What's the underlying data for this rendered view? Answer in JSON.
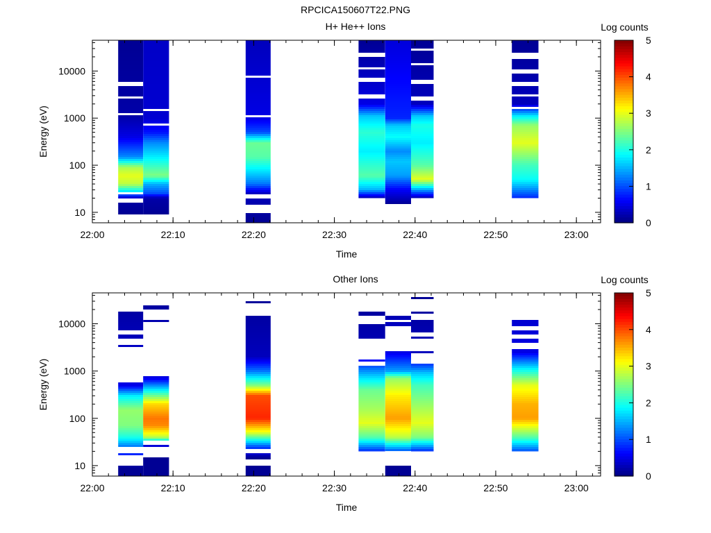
{
  "page_title": "RPCICA150607T22.PNG",
  "chart_data": [
    {
      "type": "heatmap",
      "title": "H+ He++ Ions",
      "xlabel": "Time",
      "ylabel": "Energy (eV)",
      "colorbar_label": "Log counts",
      "x_range": [
        "22:00",
        "23:03"
      ],
      "x_ticks": [
        "22:00",
        "22:10",
        "22:20",
        "22:30",
        "22:40",
        "22:50",
        "23:00"
      ],
      "y_scale": "log",
      "y_range": [
        6,
        45000
      ],
      "y_ticks": [
        10,
        100,
        1000,
        10000
      ],
      "y_tick_labels": [
        "10",
        "100",
        "1000",
        "10000"
      ],
      "colorbar_range": [
        0,
        5
      ],
      "colorbar_ticks": [
        "0",
        "1",
        "2",
        "3",
        "4",
        "5"
      ],
      "columns": [
        {
          "start": "22:03.2",
          "end": "22:06.3",
          "profile": [
            [
              9,
              0.1
            ],
            [
              15,
              0.15
            ],
            [
              20,
              0.3
            ],
            [
              28,
              1.8
            ],
            [
              40,
              2.8
            ],
            [
              60,
              3.0
            ],
            [
              90,
              2.7
            ],
            [
              150,
              1.3
            ],
            [
              400,
              0.5
            ],
            [
              1100,
              0.2
            ],
            [
              45000,
              0.1
            ]
          ],
          "gaps": [
            [
              16,
              19
            ],
            [
              24,
              26
            ],
            [
              1200,
              1300
            ],
            [
              2500,
              2800
            ],
            [
              5000,
              6000
            ]
          ]
        },
        {
          "start": "22:06.3",
          "end": "22:09.5",
          "profile": [
            [
              9,
              0.1
            ],
            [
              20,
              0.2
            ],
            [
              25,
              1.0
            ],
            [
              40,
              1.5
            ],
            [
              60,
              2.5
            ],
            [
              80,
              2.3
            ],
            [
              150,
              1.8
            ],
            [
              300,
              1.3
            ],
            [
              500,
              0.7
            ],
            [
              1000,
              0.4
            ],
            [
              45000,
              0.35
            ]
          ],
          "gaps": [
            [
              700,
              780
            ],
            [
              1400,
              1550
            ]
          ]
        },
        {
          "start": "22:19.0",
          "end": "22:22.1",
          "profile": [
            [
              6,
              0.1
            ],
            [
              9,
              0.15
            ],
            [
              25,
              0.3
            ],
            [
              40,
              1.2
            ],
            [
              80,
              1.8
            ],
            [
              150,
              2.3
            ],
            [
              300,
              2.4
            ],
            [
              500,
              1.0
            ],
            [
              1000,
              0.5
            ],
            [
              45000,
              0.3
            ]
          ],
          "gaps": [
            [
              10,
              15
            ],
            [
              19,
              25
            ],
            [
              1050,
              1150
            ],
            [
              7000,
              8000
            ]
          ]
        },
        {
          "start": "22:33.0",
          "end": "22:36.3",
          "profile": [
            [
              20,
              0.2
            ],
            [
              30,
              1.5
            ],
            [
              60,
              2.3
            ],
            [
              100,
              2.1
            ],
            [
              200,
              1.8
            ],
            [
              500,
              2.1
            ],
            [
              1100,
              1.6
            ],
            [
              2000,
              0.5
            ],
            [
              45000,
              0.1
            ]
          ],
          "gaps": [
            [
              2700,
              3200
            ],
            [
              6000,
              7000
            ],
            [
              10500,
              12000
            ],
            [
              20000,
              25000
            ]
          ]
        },
        {
          "start": "22:36.3",
          "end": "22:39.5",
          "profile": [
            [
              15,
              0.1
            ],
            [
              30,
              0.6
            ],
            [
              60,
              1.4
            ],
            [
              120,
              1.6
            ],
            [
              200,
              1.3
            ],
            [
              400,
              1.9
            ],
            [
              700,
              1.6
            ],
            [
              1000,
              0.8
            ],
            [
              45000,
              0.45
            ]
          ],
          "gaps": []
        },
        {
          "start": "22:39.5",
          "end": "22:42.3",
          "profile": [
            [
              20,
              0.2
            ],
            [
              28,
              1.2
            ],
            [
              50,
              3.0
            ],
            [
              100,
              2.3
            ],
            [
              300,
              1.8
            ],
            [
              700,
              2.0
            ],
            [
              1100,
              1.6
            ],
            [
              2000,
              0.3
            ],
            [
              45000,
              0.1
            ]
          ],
          "gaps": [
            [
              2300,
              2800
            ],
            [
              5500,
              6500
            ],
            [
              13000,
              15000
            ],
            [
              26000,
              30000
            ]
          ]
        },
        {
          "start": "22:52.0",
          "end": "22:55.3",
          "profile": [
            [
              20,
              0.8
            ],
            [
              30,
              1.3
            ],
            [
              50,
              1.9
            ],
            [
              100,
              2.2
            ],
            [
              300,
              3.0
            ],
            [
              700,
              2.6
            ],
            [
              1100,
              1.8
            ],
            [
              2000,
              0.3
            ],
            [
              45000,
              0.1
            ]
          ],
          "gaps": [
            [
              1500,
              1800
            ],
            [
              2800,
              3300
            ],
            [
              5000,
              5800
            ],
            [
              9000,
              11000
            ],
            [
              18000,
              24000
            ]
          ]
        }
      ]
    },
    {
      "type": "heatmap",
      "title": "Other Ions",
      "xlabel": "Time",
      "ylabel": "Energy (eV)",
      "colorbar_label": "Log counts",
      "x_range": [
        "22:00",
        "23:03"
      ],
      "x_ticks": [
        "22:00",
        "22:10",
        "22:20",
        "22:30",
        "22:40",
        "22:50",
        "23:00"
      ],
      "y_scale": "log",
      "y_range": [
        6,
        45000
      ],
      "y_ticks": [
        10,
        100,
        1000,
        10000
      ],
      "y_tick_labels": [
        "10",
        "100",
        "1000",
        "10000"
      ],
      "colorbar_range": [
        0,
        5
      ],
      "colorbar_ticks": [
        "0",
        "1",
        "2",
        "3",
        "4",
        "5"
      ],
      "columns": [
        {
          "start": "22:03.2",
          "end": "22:06.3",
          "profile": [
            [
              6,
              0.1
            ],
            [
              9,
              0.1
            ],
            [
              25,
              1.2
            ],
            [
              40,
              2.0
            ],
            [
              70,
              2.5
            ],
            [
              150,
              2.6
            ],
            [
              300,
              1.8
            ],
            [
              500,
              0.5
            ],
            [
              45000,
              0.1
            ]
          ],
          "gaps": [
            [
              10,
              16
            ],
            [
              19,
              24
            ],
            [
              550,
              1700
            ],
            [
              1800,
              3300
            ],
            [
              3600,
              5000
            ],
            [
              6200,
              7500
            ],
            [
              17500,
              45000
            ]
          ]
        },
        {
          "start": "22:06.3",
          "end": "22:09.5",
          "profile": [
            [
              6,
              0.1
            ],
            [
              14,
              0.1
            ],
            [
              25,
              0.2
            ],
            [
              40,
              2.8
            ],
            [
              70,
              3.7
            ],
            [
              100,
              3.8
            ],
            [
              200,
              3.3
            ],
            [
              400,
              1.8
            ],
            [
              700,
              0.5
            ],
            [
              45000,
              0.1
            ]
          ],
          "gaps": [
            [
              15,
              24
            ],
            [
              27,
              35
            ],
            [
              800,
              10500
            ],
            [
              12000,
              20000
            ],
            [
              24000,
              45000
            ]
          ]
        },
        {
          "start": "22:19.0",
          "end": "22:22.1",
          "profile": [
            [
              6,
              0.1
            ],
            [
              15,
              0.1
            ],
            [
              25,
              1.0
            ],
            [
              50,
              3.0
            ],
            [
              100,
              4.2
            ],
            [
              300,
              4.0
            ],
            [
              500,
              2.5
            ],
            [
              1000,
              1.2
            ],
            [
              2000,
              0.3
            ],
            [
              45000,
              0.1
            ]
          ],
          "gaps": [
            [
              10,
              14
            ],
            [
              19,
              23
            ],
            [
              15000,
              28000
            ],
            [
              30000,
              45000
            ]
          ]
        },
        {
          "start": "22:33.0",
          "end": "22:36.3",
          "profile": [
            [
              20,
              0.8
            ],
            [
              40,
              2.3
            ],
            [
              80,
              3.0
            ],
            [
              150,
              2.7
            ],
            [
              400,
              2.4
            ],
            [
              800,
              1.6
            ],
            [
              1300,
              1.0
            ],
            [
              2000,
              0.3
            ],
            [
              45000,
              0.1
            ]
          ],
          "gaps": [
            [
              1350,
              1550
            ],
            [
              1800,
              5000
            ],
            [
              10000,
              15000
            ],
            [
              17500,
              45000
            ]
          ]
        },
        {
          "start": "22:36.3",
          "end": "22:39.5",
          "profile": [
            [
              6,
              0.1
            ],
            [
              10,
              0.1
            ],
            [
              20,
              1.0
            ],
            [
              40,
              2.8
            ],
            [
              100,
              3.6
            ],
            [
              300,
              3.2
            ],
            [
              700,
              2.6
            ],
            [
              1000,
              1.4
            ],
            [
              2500,
              0.5
            ],
            [
              45000,
              0.1
            ]
          ],
          "gaps": [
            [
              9.5,
              20
            ],
            [
              2600,
              9000
            ],
            [
              11000,
              12500
            ],
            [
              15000,
              45000
            ]
          ]
        },
        {
          "start": "22:39.5",
          "end": "22:42.3",
          "profile": [
            [
              20,
              0.8
            ],
            [
              40,
              2.5
            ],
            [
              80,
              3.0
            ],
            [
              200,
              2.6
            ],
            [
              500,
              2.2
            ],
            [
              900,
              1.6
            ],
            [
              1300,
              1.0
            ],
            [
              2500,
              0.3
            ],
            [
              45000,
              0.1
            ]
          ],
          "gaps": [
            [
              1400,
              2300
            ],
            [
              2600,
              4800
            ],
            [
              5200,
              6800
            ],
            [
              12000,
              17000
            ],
            [
              19000,
              33000
            ],
            [
              36000,
              45000
            ]
          ]
        },
        {
          "start": "22:52.0",
          "end": "22:55.3",
          "profile": [
            [
              20,
              1.0
            ],
            [
              40,
              2.3
            ],
            [
              100,
              3.6
            ],
            [
              200,
              3.5
            ],
            [
              500,
              3.0
            ],
            [
              1000,
              2.0
            ],
            [
              2500,
              0.5
            ],
            [
              12000,
              0.4
            ],
            [
              45000,
              0.1
            ]
          ],
          "gaps": [
            [
              3000,
              4000
            ],
            [
              5000,
              6000
            ],
            [
              7000,
              8500
            ],
            [
              12000,
              45000
            ]
          ]
        }
      ]
    }
  ]
}
